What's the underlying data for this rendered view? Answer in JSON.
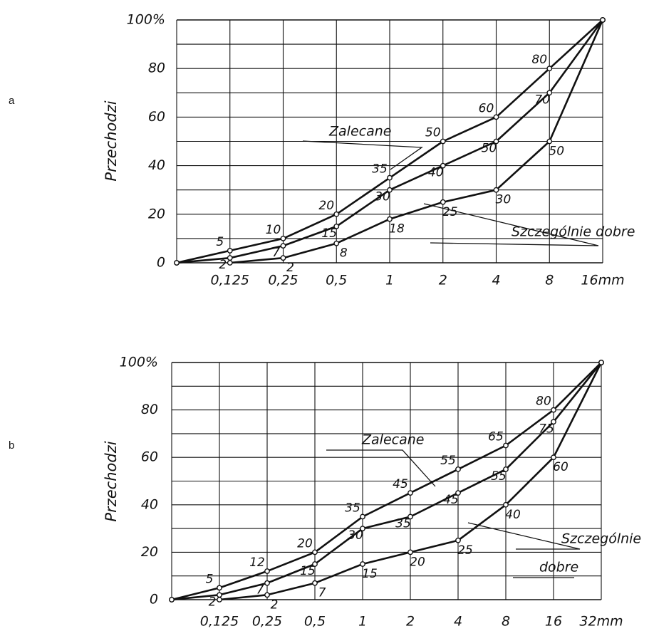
{
  "chart_data": [
    {
      "panel_label": "a",
      "type": "line",
      "ylabel": "Przechodzi",
      "y_ticks": [
        "0",
        "20",
        "40",
        "60",
        "80",
        "100%"
      ],
      "y_tick_values": [
        0,
        20,
        40,
        60,
        80,
        100
      ],
      "ylim": [
        0,
        100
      ],
      "x_ticks": [
        "0,125",
        "0,25",
        "0,5",
        "1",
        "2",
        "4",
        "8",
        "16mm"
      ],
      "xlim": [
        0.0625,
        16
      ],
      "x_scale": "log2",
      "grid": true,
      "series": [
        {
          "points": [
            [
              0.0625,
              0
            ],
            [
              0.125,
              5
            ],
            [
              0.25,
              10
            ],
            [
              0.5,
              20
            ],
            [
              1,
              35
            ],
            [
              2,
              50
            ],
            [
              4,
              60
            ],
            [
              8,
              80
            ],
            [
              16,
              100
            ]
          ],
          "labels": [
            "5",
            "10",
            "20",
            "35",
            "50",
            "60",
            "80"
          ]
        },
        {
          "points": [
            [
              0.0625,
              0
            ],
            [
              0.125,
              2
            ],
            [
              0.25,
              7
            ],
            [
              0.5,
              15
            ],
            [
              1,
              30
            ],
            [
              2,
              40
            ],
            [
              4,
              50
            ],
            [
              8,
              70
            ],
            [
              16,
              100
            ]
          ],
          "labels": [
            "2",
            "7",
            "15",
            "30",
            "40",
            "50",
            "70"
          ]
        },
        {
          "points": [
            [
              0.125,
              0
            ],
            [
              0.25,
              2
            ],
            [
              0.5,
              8
            ],
            [
              1,
              18
            ],
            [
              2,
              25
            ],
            [
              4,
              30
            ],
            [
              8,
              50
            ],
            [
              16,
              100
            ]
          ],
          "labels": [
            "2",
            "8",
            "18",
            "25",
            "30",
            "50"
          ]
        }
      ],
      "annotations": [
        "Zalecane",
        "Szczególnie dobre"
      ]
    },
    {
      "panel_label": "b",
      "type": "line",
      "ylabel": "Przechodzi",
      "y_ticks": [
        "0",
        "20",
        "40",
        "60",
        "80",
        "100%"
      ],
      "y_tick_values": [
        0,
        20,
        40,
        60,
        80,
        100
      ],
      "ylim": [
        0,
        100
      ],
      "x_ticks": [
        "0,125",
        "0,25",
        "0,5",
        "1",
        "2",
        "4",
        "8",
        "16",
        "32mm"
      ],
      "xlim": [
        0.0625,
        32
      ],
      "x_scale": "log2",
      "grid": true,
      "series": [
        {
          "points": [
            [
              0.0625,
              0
            ],
            [
              0.125,
              5
            ],
            [
              0.25,
              12
            ],
            [
              0.5,
              20
            ],
            [
              1,
              35
            ],
            [
              2,
              45
            ],
            [
              4,
              55
            ],
            [
              8,
              65
            ],
            [
              16,
              80
            ],
            [
              32,
              100
            ]
          ],
          "labels": [
            "5",
            "12",
            "20",
            "35",
            "45",
            "55",
            "65",
            "80"
          ]
        },
        {
          "points": [
            [
              0.0625,
              0
            ],
            [
              0.125,
              2
            ],
            [
              0.25,
              7
            ],
            [
              0.5,
              15
            ],
            [
              1,
              30
            ],
            [
              2,
              35
            ],
            [
              4,
              45
            ],
            [
              8,
              55
            ],
            [
              16,
              75
            ],
            [
              32,
              100
            ]
          ],
          "labels": [
            "2",
            "7",
            "15",
            "30",
            "35",
            "45",
            "55",
            "75"
          ]
        },
        {
          "points": [
            [
              0.125,
              0
            ],
            [
              0.25,
              2
            ],
            [
              0.5,
              7
            ],
            [
              1,
              15
            ],
            [
              2,
              20
            ],
            [
              4,
              25
            ],
            [
              8,
              40
            ],
            [
              16,
              60
            ],
            [
              32,
              100
            ]
          ],
          "labels": [
            "2",
            "7",
            "15",
            "20",
            "25",
            "40",
            "60"
          ]
        }
      ],
      "annotations": [
        "Zalecane",
        "Szczególnie",
        "dobre"
      ]
    }
  ]
}
